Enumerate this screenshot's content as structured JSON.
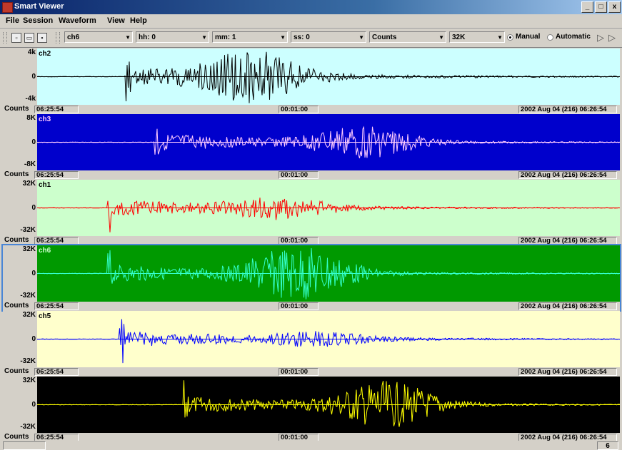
{
  "window": {
    "title": "Smart Viewer",
    "min": "_",
    "restore": "□",
    "close": "x"
  },
  "menu": [
    "File",
    "Session",
    "Waveform",
    "View",
    "Help"
  ],
  "toolbar": {
    "channel": "ch6",
    "hh": "hh: 0",
    "mm": "mm: 1",
    "ss": "ss: 0",
    "units": "Counts",
    "scale": "32K",
    "mode_manual": "Manual",
    "mode_automatic": "Automatic",
    "mode_selected": "Manual"
  },
  "panels": [
    {
      "name": "ch2",
      "ymax": "4k",
      "yzero": "0",
      "ymin": "-4k",
      "units": "Counts",
      "bg": "#ccffff",
      "trace": "#000000",
      "seed": 2,
      "onset": 0.15,
      "peak": 0.37,
      "amp": 0.85,
      "decay": 0.45,
      "start": "06:25:54",
      "window": "00:01:00",
      "end": "2002 Aug 04 (216) 06:26:54",
      "selected": false,
      "label_color": "#000000"
    },
    {
      "name": "ch3",
      "ymax": "8K",
      "yzero": "0",
      "ymin": "-8K",
      "units": "Counts",
      "bg": "#0000cc",
      "trace": "#ffccff",
      "seed": 3,
      "onset": 0.2,
      "peak": 0.56,
      "amp": 0.55,
      "decay": 0.35,
      "start": "06:25:54",
      "window": "00:01:00",
      "end": "2002 Aug 04 (216) 06:26:54",
      "selected": false,
      "label_color": "#ffccff"
    },
    {
      "name": "ch1",
      "ymax": "32K",
      "yzero": "0",
      "ymin": "-32K",
      "units": "Counts",
      "bg": "#ccffcc",
      "trace": "#ff0000",
      "seed": 1,
      "onset": 0.12,
      "peak": 0.42,
      "amp": 0.35,
      "decay": 0.3,
      "start": "06:25:54",
      "window": "00:01:00",
      "end": "2002 Aug 04 (216) 06:26:54",
      "selected": false,
      "label_color": "#000000"
    },
    {
      "name": "ch6",
      "ymax": "32K",
      "yzero": "0",
      "ymin": "-32K",
      "units": "Counts",
      "bg": "#009900",
      "trace": "#33ffcc",
      "seed": 6,
      "onset": 0.12,
      "peak": 0.45,
      "amp": 0.95,
      "decay": 0.4,
      "start": "06:25:54",
      "window": "00:01:00",
      "end": "2002 Aug 04 (216) 06:26:54",
      "selected": true,
      "label_color": "#ccffcc"
    },
    {
      "name": "ch5",
      "ymax": "32K",
      "yzero": "0",
      "ymin": "-32K",
      "units": "Counts",
      "bg": "#ffffcc",
      "trace": "#0000ff",
      "seed": 5,
      "onset": 0.14,
      "peak": 0.48,
      "amp": 0.2,
      "decay": 0.4,
      "start": "06:25:54",
      "window": "00:01:00",
      "end": "2002 Aug 04 (216) 06:26:54",
      "selected": false,
      "label_color": "#000000"
    },
    {
      "name": "",
      "ymax": "32K",
      "yzero": "0",
      "ymin": "-32K",
      "units": "Counts",
      "bg": "#000000",
      "trace": "#ffff00",
      "seed": 7,
      "onset": 0.25,
      "peak": 0.6,
      "amp": 0.8,
      "decay": 0.3,
      "start": "06:25:54",
      "window": "00:01:00",
      "end": "2002 Aug 04 (216) 06:26:54",
      "selected": false,
      "label_color": "#ffff00"
    }
  ],
  "status": {
    "count": "6"
  }
}
